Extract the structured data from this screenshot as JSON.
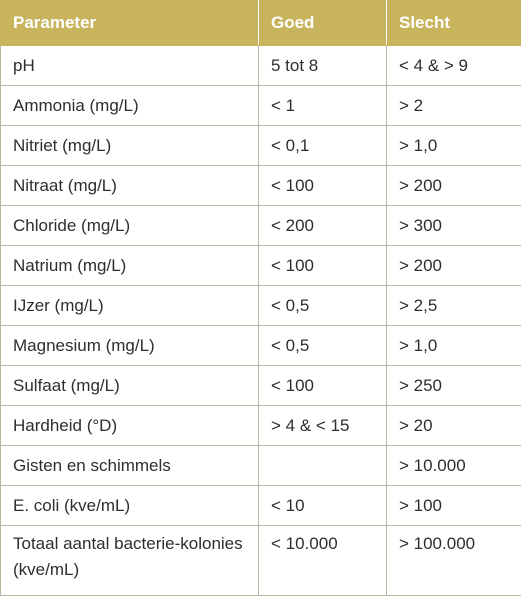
{
  "table": {
    "header": [
      "Parameter",
      "Goed",
      "Slecht"
    ],
    "rows": [
      [
        "pH",
        "5 tot 8",
        "< 4 & > 9"
      ],
      [
        "Ammonia (mg/L)",
        "< 1",
        "> 2"
      ],
      [
        "Nitriet (mg/L)",
        "< 0,1",
        "> 1,0"
      ],
      [
        "Nitraat (mg/L)",
        "< 100",
        "> 200"
      ],
      [
        "Chloride (mg/L)",
        "< 200",
        "> 300"
      ],
      [
        "Natrium (mg/L)",
        "< 100",
        "> 200"
      ],
      [
        "IJzer (mg/L)",
        "< 0,5",
        "> 2,5"
      ],
      [
        "Magnesium (mg/L)",
        "< 0,5",
        "> 1,0"
      ],
      [
        "Sulfaat (mg/L)",
        "< 100",
        "> 250"
      ],
      [
        "Hardheid (°D)",
        "> 4 & < 15",
        "> 20"
      ],
      [
        "Gisten en schimmels",
        null,
        "> 10.000"
      ],
      [
        "E. coli (kve/mL)",
        "< 10",
        "> 100"
      ],
      [
        "Totaal aantal bacterie-kolonies (kve/mL)",
        "< 10.000",
        "> 100.000"
      ]
    ]
  }
}
